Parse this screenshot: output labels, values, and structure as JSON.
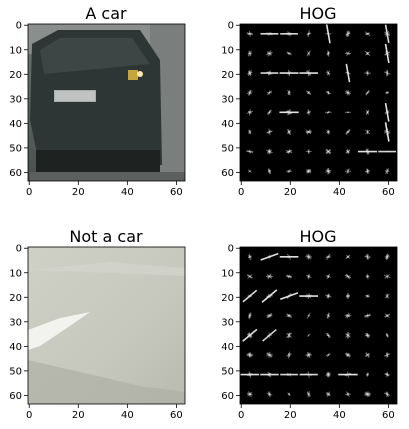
{
  "panels": [
    {
      "id": "car-image",
      "title": "A car",
      "kind": "photo-car",
      "xticks": [
        "0",
        "20",
        "40",
        "60"
      ],
      "yticks": [
        "0",
        "10",
        "20",
        "30",
        "40",
        "50",
        "60"
      ]
    },
    {
      "id": "car-hog",
      "title": "HOG",
      "kind": "hog-car",
      "xticks": [
        "0",
        "20",
        "40",
        "60"
      ],
      "yticks": [
        "0",
        "10",
        "20",
        "30",
        "40",
        "50",
        "60"
      ]
    },
    {
      "id": "notcar-image",
      "title": "Not a car",
      "kind": "photo-road",
      "xticks": [
        "0",
        "20",
        "40",
        "60"
      ],
      "yticks": [
        "0",
        "10",
        "20",
        "30",
        "40",
        "50",
        "60"
      ]
    },
    {
      "id": "notcar-hog",
      "title": "HOG",
      "kind": "hog-road",
      "xticks": [
        "0",
        "20",
        "40",
        "60"
      ],
      "yticks": [
        "0",
        "10",
        "20",
        "30",
        "40",
        "50",
        "60"
      ]
    }
  ],
  "colors": {
    "background": "#ffffff",
    "axis": "#000000",
    "hog_background": "#000000",
    "hog_stroke": "#e6e6e6",
    "car_body": "#2f3736",
    "road_surface": "#c8c9bf"
  }
}
